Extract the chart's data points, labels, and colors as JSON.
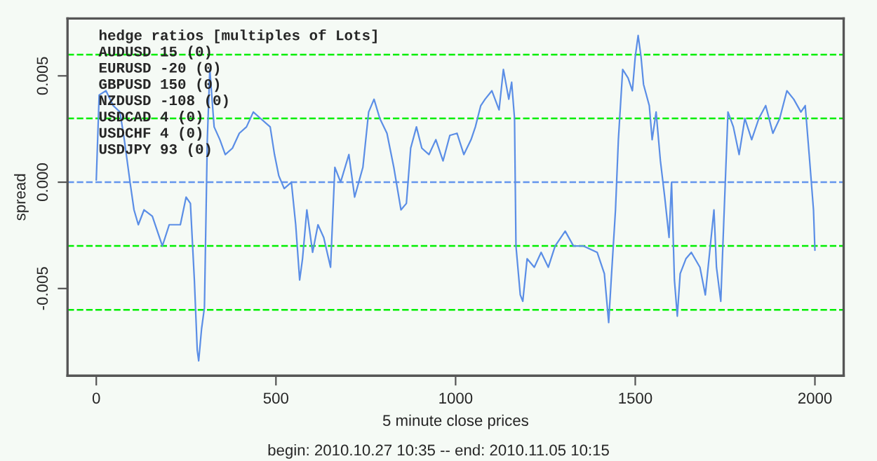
{
  "chart_data": {
    "type": "line",
    "xlabel": "5 minute close prices",
    "ylabel": "spread",
    "annotations": [
      "hedge ratios [multiples of Lots]",
      "AUDUSD 15 (0)",
      "EURUSD -20 (0)",
      "GBPUSD 150 (0)",
      "NZDUSD -108 (0)",
      "USDCAD 4 (0)",
      "USDCHF 4 (0)",
      "USDJPY 93 (0)",
      "begin: 2010.10.27 10:35 -- end: 2010.11.05 10:15"
    ],
    "xlim": [
      -80,
      2080
    ],
    "xticks": [
      0,
      500,
      1000,
      1500,
      2000
    ],
    "ylim": [
      -0.0091,
      0.0077
    ],
    "yticks": [
      -0.005,
      {
        "value": 0.0,
        "label": "0.000"
      },
      0.005
    ],
    "grid": false,
    "legend": false,
    "ref_lines": [
      {
        "axis": "y",
        "value": 0.006,
        "color": "#00ee00",
        "line_style": "dashed"
      },
      {
        "axis": "y",
        "value": 0.003,
        "color": "#00ee00",
        "line_style": "dashed"
      },
      {
        "axis": "y",
        "value": 0.0,
        "color": "#6495ed",
        "line_style": "dashed"
      },
      {
        "axis": "y",
        "value": -0.003,
        "color": "#00ee00",
        "line_style": "dashed"
      },
      {
        "axis": "y",
        "value": -0.006,
        "color": "#00ee00",
        "line_style": "dashed"
      }
    ],
    "series": [
      {
        "color": "#5b8ee6",
        "x": [
          0,
          8,
          27,
          47,
          66,
          78,
          94,
          105,
          117,
          133,
          156,
          184,
          203,
          234,
          250,
          262,
          273,
          281,
          285,
          293,
          301,
          309,
          316,
          328,
          344,
          359,
          379,
          398,
          418,
          437,
          457,
          484,
          496,
          508,
          523,
          543,
          555,
          566,
          574,
          586,
          602,
          617,
          633,
          652,
          664,
          680,
          703,
          719,
          742,
          758,
          773,
          789,
          809,
          828,
          848,
          863,
          875,
          891,
          906,
          926,
          945,
          965,
          984,
          1004,
          1023,
          1043,
          1055,
          1070,
          1082,
          1101,
          1121,
          1133,
          1148,
          1156,
          1164,
          1168,
          1180,
          1187,
          1199,
          1219,
          1238,
          1258,
          1277,
          1305,
          1328,
          1355,
          1394,
          1414,
          1426,
          1433,
          1445,
          1453,
          1465,
          1480,
          1492,
          1500,
          1508,
          1516,
          1523,
          1539,
          1547,
          1558,
          1570,
          1582,
          1594,
          1601,
          1609,
          1617,
          1625,
          1641,
          1656,
          1680,
          1695,
          1707,
          1719,
          1726,
          1738,
          1746,
          1758,
          1773,
          1789,
          1805,
          1824,
          1844,
          1863,
          1883,
          1902,
          1922,
          1941,
          1961,
          1973,
          1984,
          1996,
          2000
        ],
        "values": [
          0.0001,
          0.0041,
          0.0043,
          0.0036,
          0.0033,
          0.002,
          0.0,
          -0.0013,
          -0.002,
          -0.0013,
          -0.0016,
          -0.003,
          -0.002,
          -0.002,
          -0.0007,
          -0.001,
          -0.0046,
          -0.0079,
          -0.0084,
          -0.0069,
          -0.0059,
          0.002,
          0.0053,
          0.0026,
          0.002,
          0.0013,
          0.0016,
          0.0023,
          0.0026,
          0.0033,
          0.003,
          0.0026,
          0.0013,
          0.0003,
          -0.0003,
          0.0,
          -0.002,
          -0.0046,
          -0.0036,
          -0.0013,
          -0.0033,
          -0.002,
          -0.0026,
          -0.004,
          0.0007,
          0.0,
          0.0013,
          -0.0007,
          0.0007,
          0.0033,
          0.0039,
          0.003,
          0.0023,
          0.0007,
          -0.0013,
          -0.001,
          0.0016,
          0.0026,
          0.0016,
          0.0013,
          0.002,
          0.001,
          0.0022,
          0.0023,
          0.0013,
          0.002,
          0.0026,
          0.0036,
          0.0039,
          0.0043,
          0.0034,
          0.0053,
          0.0039,
          0.0047,
          0.003,
          -0.003,
          -0.0053,
          -0.0056,
          -0.0036,
          -0.004,
          -0.0033,
          -0.004,
          -0.003,
          -0.0023,
          -0.003,
          -0.003,
          -0.0033,
          -0.0043,
          -0.0066,
          -0.0046,
          -0.0013,
          0.002,
          0.0053,
          0.0049,
          0.0043,
          0.0059,
          0.0069,
          0.0059,
          0.0046,
          0.0036,
          0.002,
          0.0033,
          0.001,
          -0.0007,
          -0.0026,
          0.0,
          -0.0046,
          -0.0063,
          -0.0043,
          -0.0036,
          -0.0033,
          -0.004,
          -0.0053,
          -0.0033,
          -0.0013,
          -0.004,
          -0.0056,
          -0.002,
          0.0033,
          0.0026,
          0.0013,
          0.003,
          0.002,
          0.003,
          0.0036,
          0.0023,
          0.003,
          0.0043,
          0.0039,
          0.0033,
          0.0036,
          0.0013,
          -0.0013,
          -0.0032
        ]
      }
    ]
  }
}
